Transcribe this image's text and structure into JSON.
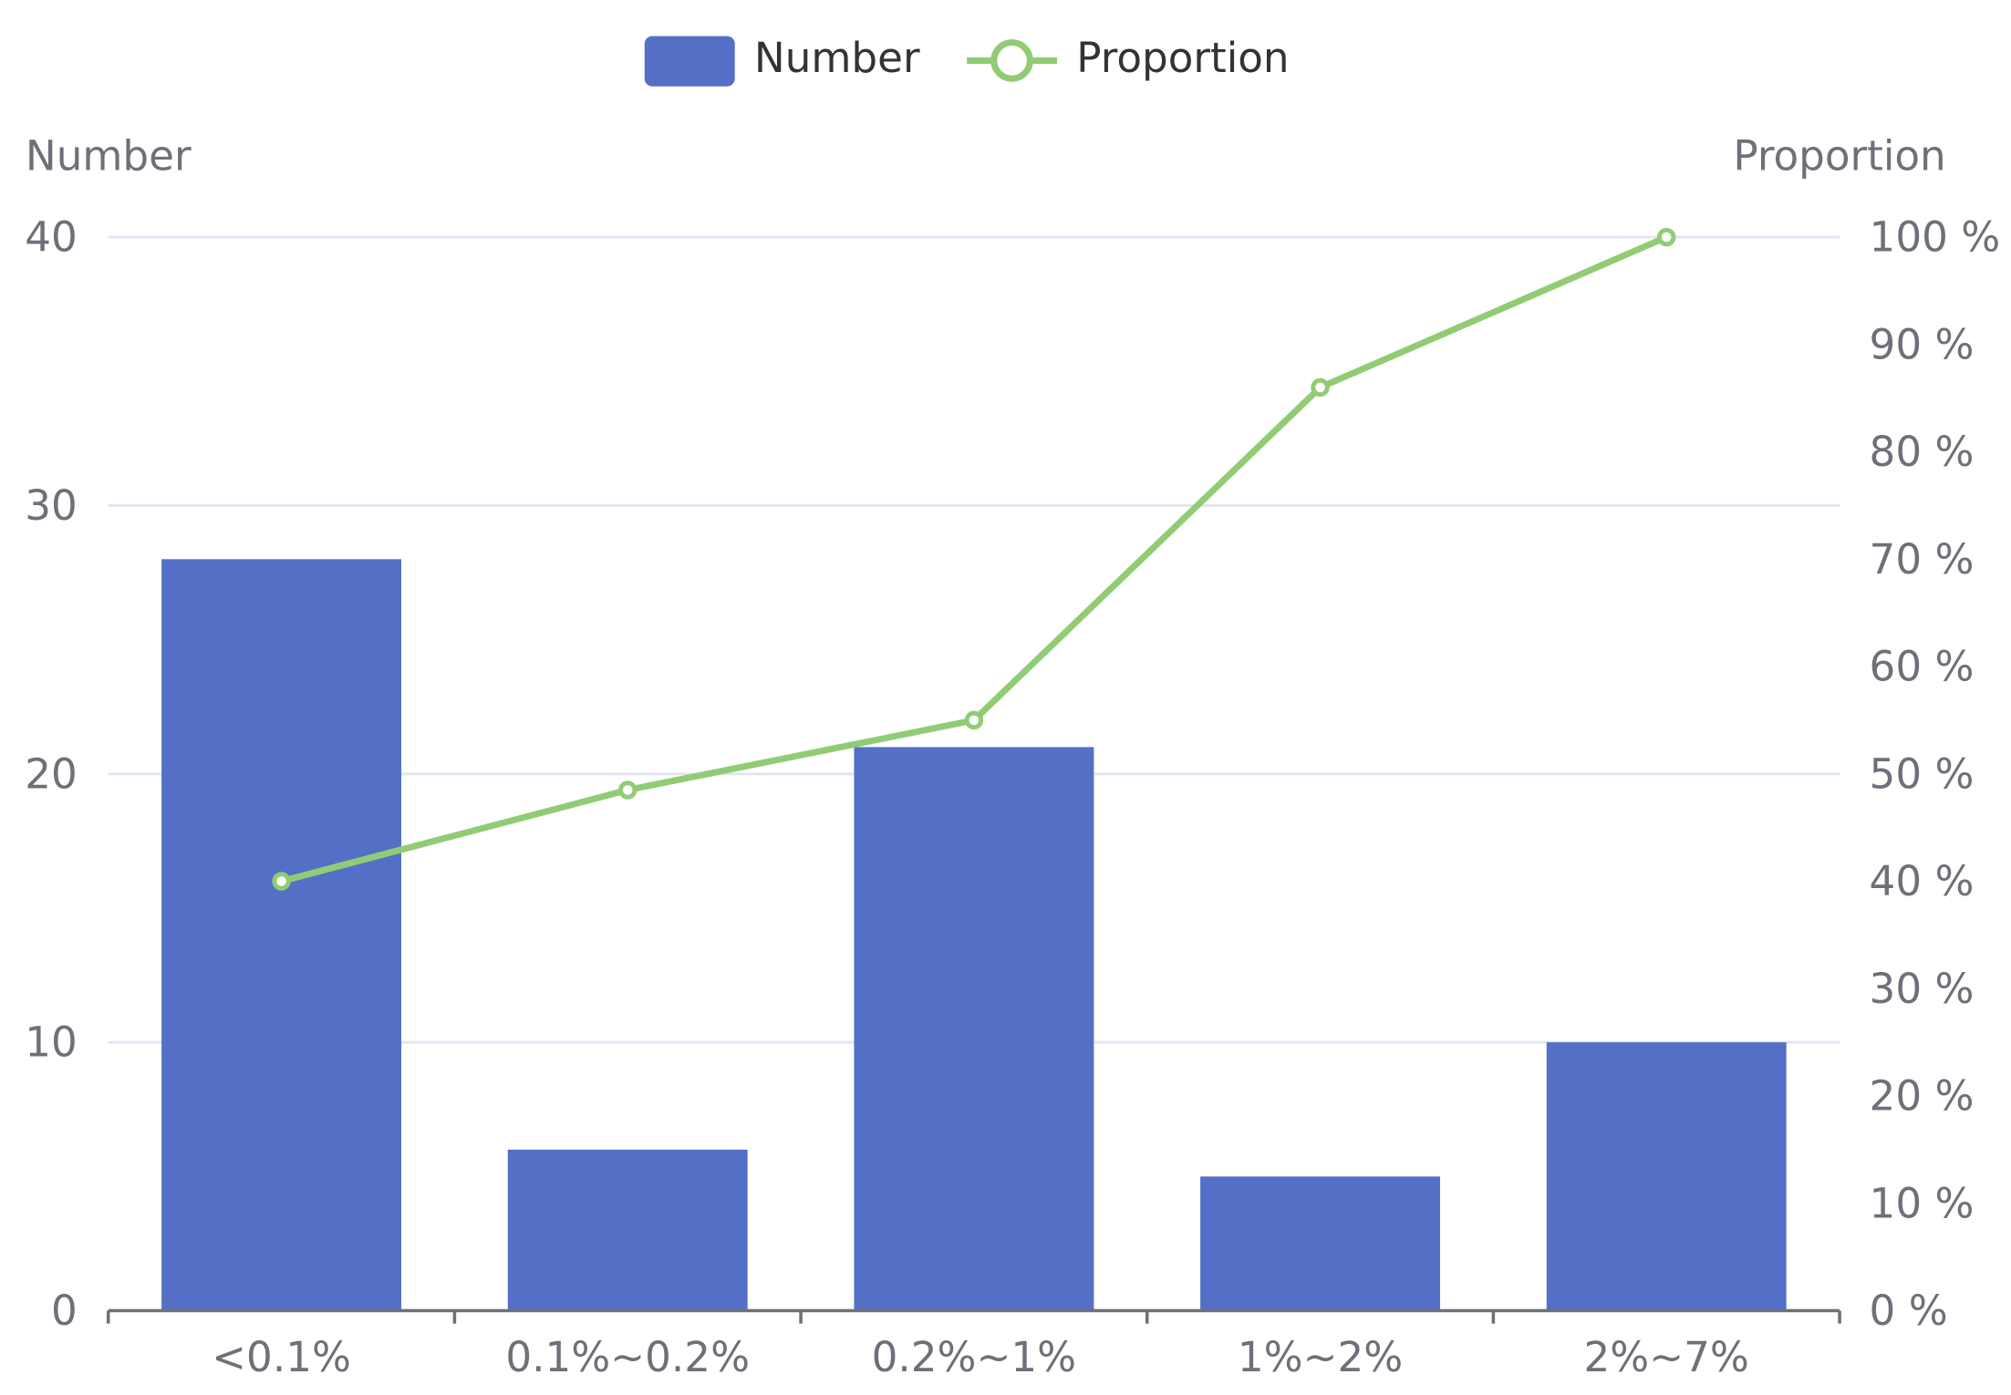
{
  "chart_data": {
    "type": "bar",
    "categories": [
      "<0.1%",
      "0.1%~0.2%",
      "0.2%~1%",
      "1%~2%",
      "2%~7%"
    ],
    "series": [
      {
        "name": "Number",
        "type": "bar",
        "axis": "left",
        "color": "#5470c6",
        "values": [
          28,
          6,
          21,
          5,
          10
        ]
      },
      {
        "name": "Proportion",
        "type": "line",
        "axis": "right",
        "color": "#91cc75",
        "values": [
          40,
          48.5,
          55,
          86,
          100
        ]
      }
    ],
    "y_left": {
      "label": "Number",
      "min": 0,
      "max": 40,
      "ticks": [
        0,
        10,
        20,
        30,
        40
      ],
      "tick_labels": [
        "0",
        "10",
        "20",
        "30",
        "40"
      ]
    },
    "y_right": {
      "label": "Proportion",
      "min": 0,
      "max": 100,
      "ticks": [
        0,
        10,
        20,
        30,
        40,
        50,
        60,
        70,
        80,
        90,
        100
      ],
      "tick_labels": [
        "0 %",
        "10 %",
        "20 %",
        "30 %",
        "40 %",
        "50 %",
        "60 %",
        "70 %",
        "80 %",
        "90 %",
        "100 %"
      ]
    },
    "legend": {
      "position": "top-center",
      "entries": [
        "Number",
        "Proportion"
      ]
    },
    "grid": true,
    "grid_color": "#e0e6f1",
    "axis_color": "#6e7079"
  }
}
